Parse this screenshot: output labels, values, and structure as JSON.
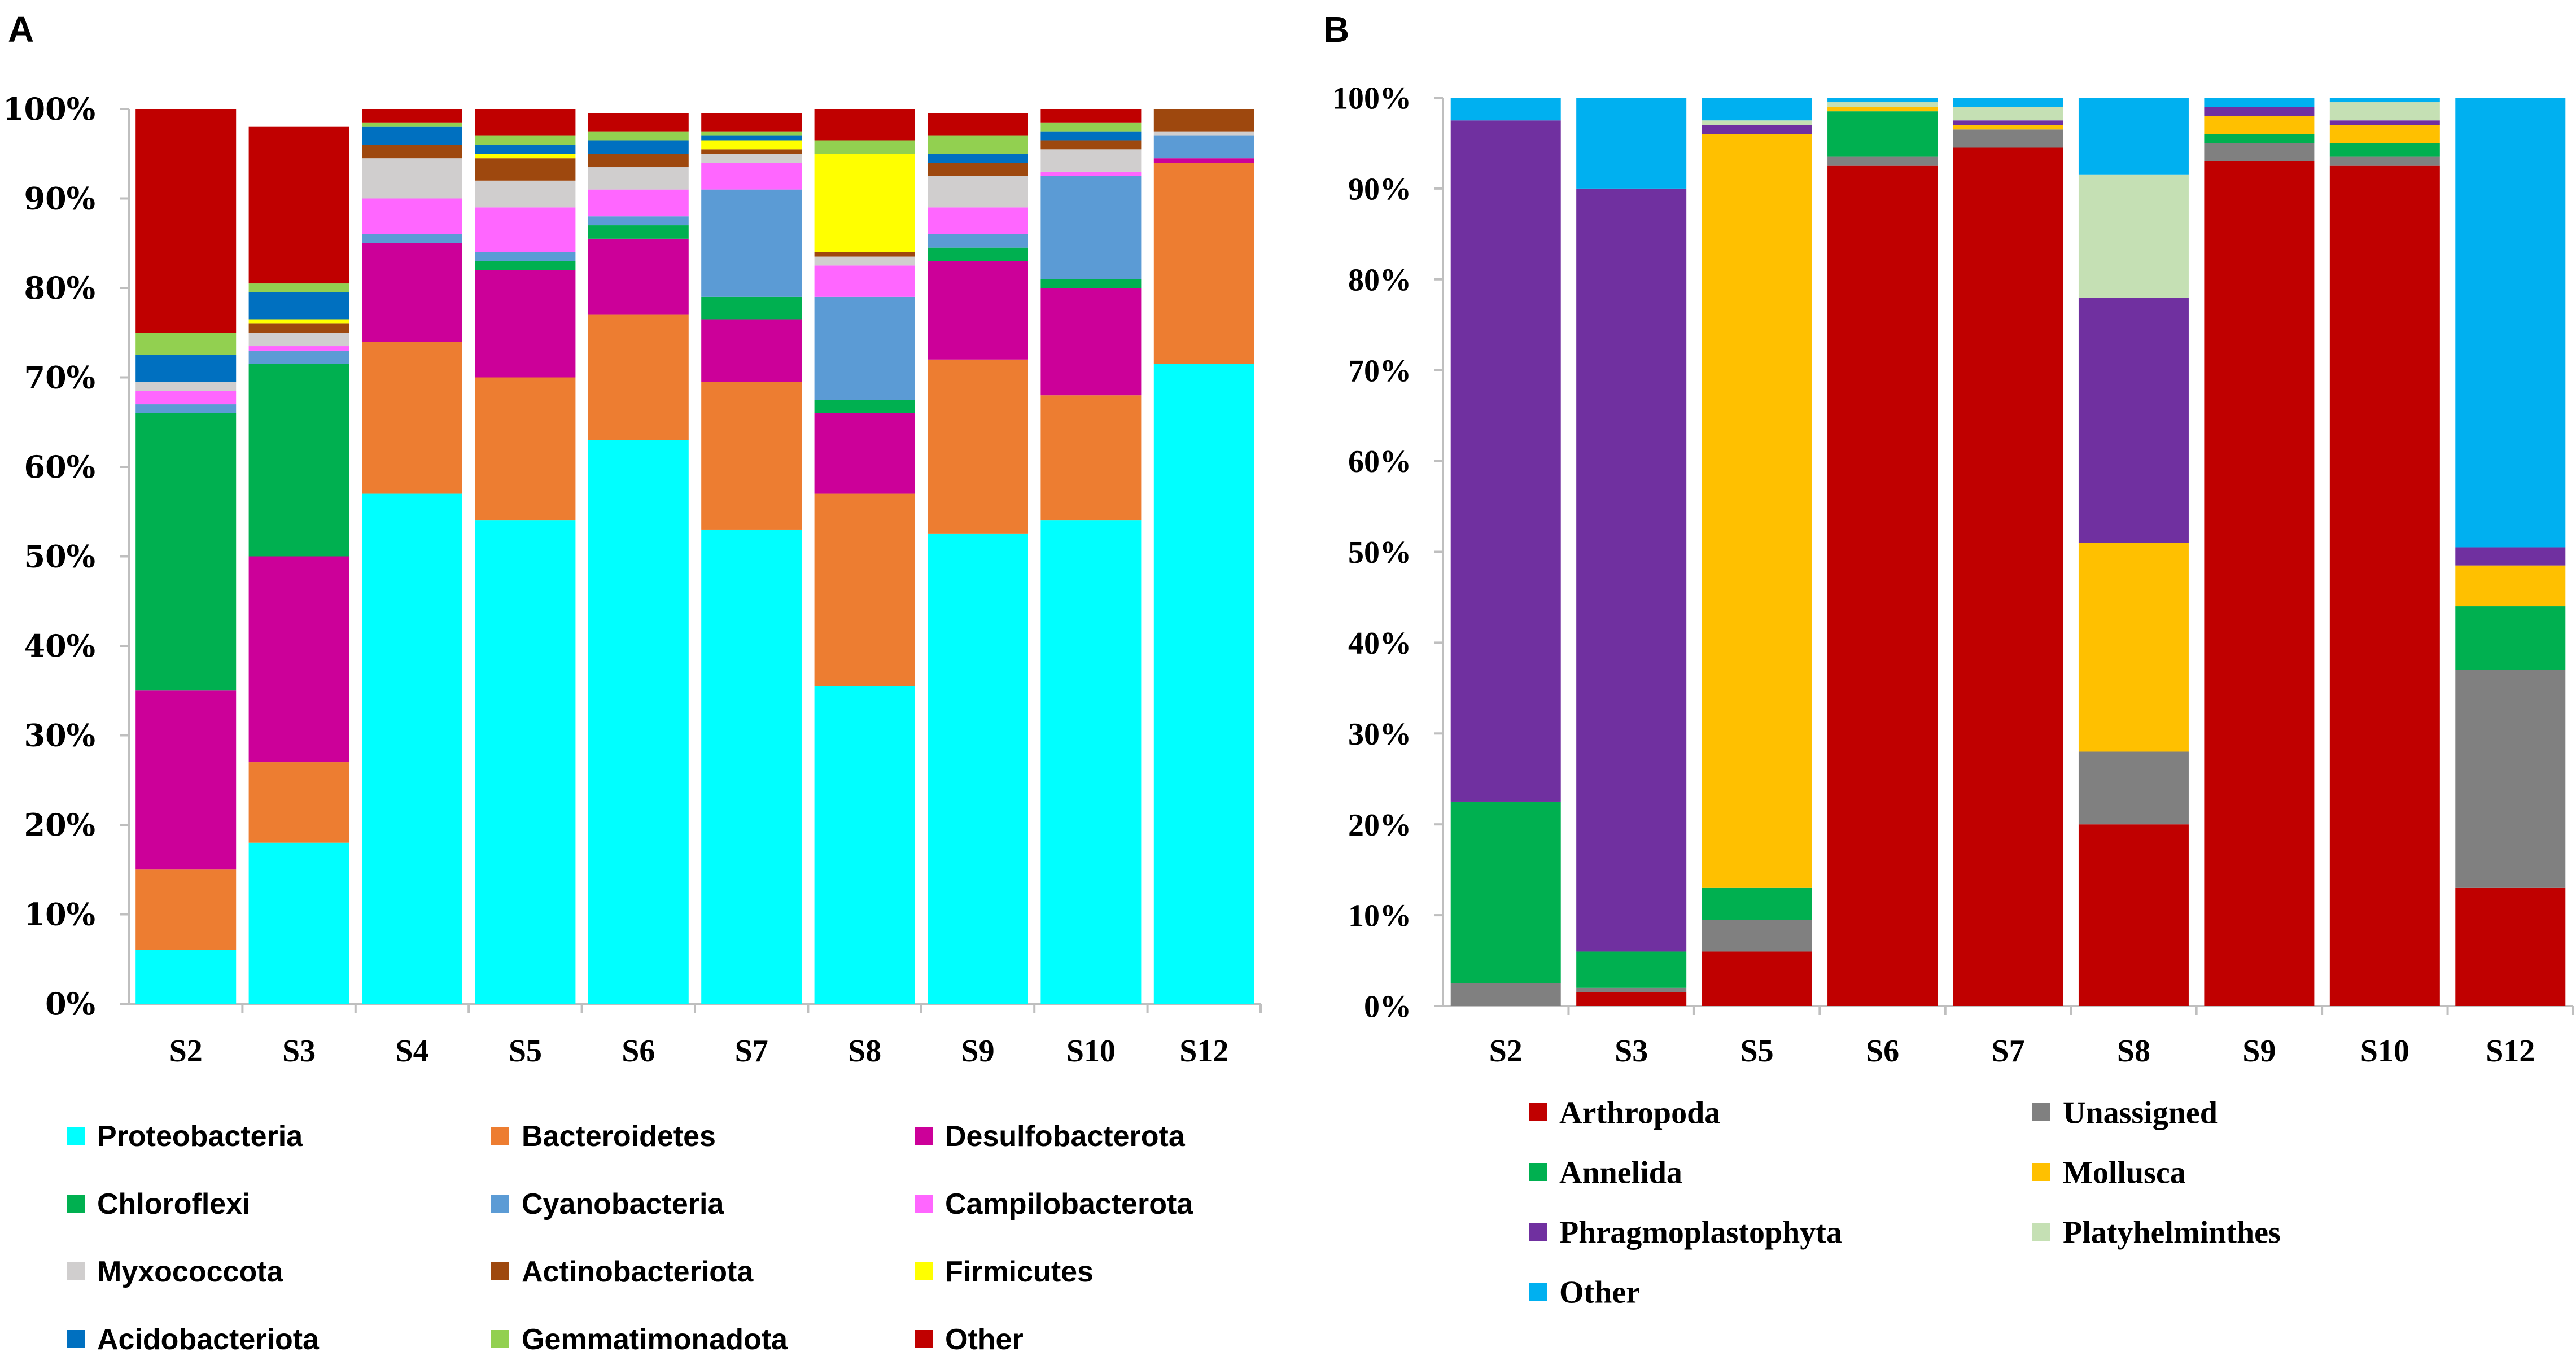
{
  "colors": {
    "axis": "#bfbfbf",
    "text": "#000000"
  },
  "chart_data": [
    {
      "id": "A",
      "panel_label": "A",
      "type": "bar",
      "stacked": true,
      "ylim": [
        0,
        100
      ],
      "y_ticks": [
        0,
        10,
        20,
        30,
        40,
        50,
        60,
        70,
        80,
        90,
        100
      ],
      "y_tick_labels": [
        "0%",
        "10%",
        "20%",
        "30%",
        "40%",
        "50%",
        "60%",
        "70%",
        "80%",
        "90%",
        "100%"
      ],
      "categories": [
        "S2",
        "S3",
        "S4",
        "S5",
        "S6",
        "S7",
        "S8",
        "S9",
        "S10",
        "S12"
      ],
      "series": [
        {
          "name": "Proteobacteria",
          "color": "#00ffff",
          "values": [
            6,
            18,
            57,
            54,
            63,
            53,
            35.5,
            52.5,
            54,
            71.5
          ]
        },
        {
          "name": "Bacteroidetes",
          "color": "#ed7d31",
          "values": [
            9,
            9,
            17,
            16,
            14,
            16.5,
            21.5,
            19.5,
            14,
            22.5
          ]
        },
        {
          "name": "Desulfobacterota",
          "color": "#cc0099",
          "values": [
            20,
            23,
            11,
            12,
            8.5,
            7,
            9,
            11,
            12,
            0.5
          ]
        },
        {
          "name": "Chloroflexi",
          "color": "#00b050",
          "values": [
            31,
            21.5,
            0,
            1,
            1.5,
            2.5,
            1.5,
            1.5,
            1,
            0
          ]
        },
        {
          "name": "Cyanobacteria",
          "color": "#5b9bd5",
          "values": [
            1,
            1.5,
            1,
            1,
            1,
            12,
            11.5,
            1.5,
            11.5,
            2.5
          ]
        },
        {
          "name": "Campilobacterota",
          "color": "#ff66ff",
          "values": [
            1.5,
            0.5,
            4,
            5,
            3,
            3,
            3.5,
            3,
            0.5,
            0
          ]
        },
        {
          "name": "Myxococcota",
          "color": "#d0cece",
          "values": [
            1,
            1.5,
            4.5,
            3,
            2.5,
            1,
            1,
            3.5,
            2.5,
            0.5
          ]
        },
        {
          "name": "Actinobacteriota",
          "color": "#9e480e",
          "values": [
            0,
            1,
            1.5,
            2.5,
            1.5,
            0.5,
            0.5,
            1.5,
            1,
            2.5
          ]
        },
        {
          "name": "Firmicutes",
          "color": "#ffff00",
          "values": [
            0,
            0.5,
            0,
            0.5,
            0,
            1,
            11,
            0,
            0,
            0
          ]
        },
        {
          "name": "Acidobacteriota",
          "color": "#0070c0",
          "values": [
            3,
            3,
            2,
            1,
            1.5,
            0.5,
            0,
            1,
            1,
            0
          ]
        },
        {
          "name": "Gemmatimonadota",
          "color": "#92d050",
          "values": [
            2.5,
            1,
            0.5,
            1,
            1,
            0.5,
            1.5,
            2,
            1,
            0
          ]
        },
        {
          "name": "Other",
          "color": "#c00000",
          "values": [
            25,
            17.5,
            1.5,
            3,
            2,
            2,
            3.5,
            2.5,
            1.5,
            0
          ]
        }
      ]
    },
    {
      "id": "B",
      "panel_label": "B",
      "type": "bar",
      "stacked": true,
      "ylim": [
        0,
        100
      ],
      "y_ticks": [
        0,
        10,
        20,
        30,
        40,
        50,
        60,
        70,
        80,
        90,
        100
      ],
      "y_tick_labels": [
        "0%",
        "10%",
        "20%",
        "30%",
        "40%",
        "50%",
        "60%",
        "70%",
        "80%",
        "90%",
        "100%"
      ],
      "categories": [
        "S2",
        "S3",
        "S5",
        "S6",
        "S7",
        "S8",
        "S9",
        "S10",
        "S12"
      ],
      "series": [
        {
          "name": "Arthropoda",
          "color": "#c00000",
          "values": [
            0,
            1.5,
            6,
            92.5,
            94.5,
            20,
            93,
            92.5,
            13
          ]
        },
        {
          "name": "Unassigned",
          "color": "#808080",
          "values": [
            2.5,
            0.5,
            3.5,
            1,
            2,
            8,
            2,
            1,
            24
          ]
        },
        {
          "name": "Annelida",
          "color": "#00b050",
          "values": [
            20,
            4,
            3.5,
            5,
            0,
            0,
            1,
            1.5,
            7
          ]
        },
        {
          "name": "Mollusca",
          "color": "#ffc000",
          "values": [
            0,
            0,
            83,
            0.5,
            0.5,
            23,
            2,
            2,
            4.5
          ]
        },
        {
          "name": "Phragmoplastophyta",
          "color": "#7030a0",
          "values": [
            75,
            84,
            1,
            0,
            0.5,
            27,
            1,
            0.5,
            2
          ]
        },
        {
          "name": "Platyhelminthes",
          "color": "#c5e0b4",
          "values": [
            0,
            0,
            0.5,
            0.5,
            1.5,
            13.5,
            0,
            2,
            0
          ]
        },
        {
          "name": "Other",
          "color": "#00b0f0",
          "values": [
            2.5,
            10,
            2.5,
            0.5,
            1,
            8.5,
            1,
            0.5,
            49.5
          ]
        }
      ]
    }
  ]
}
